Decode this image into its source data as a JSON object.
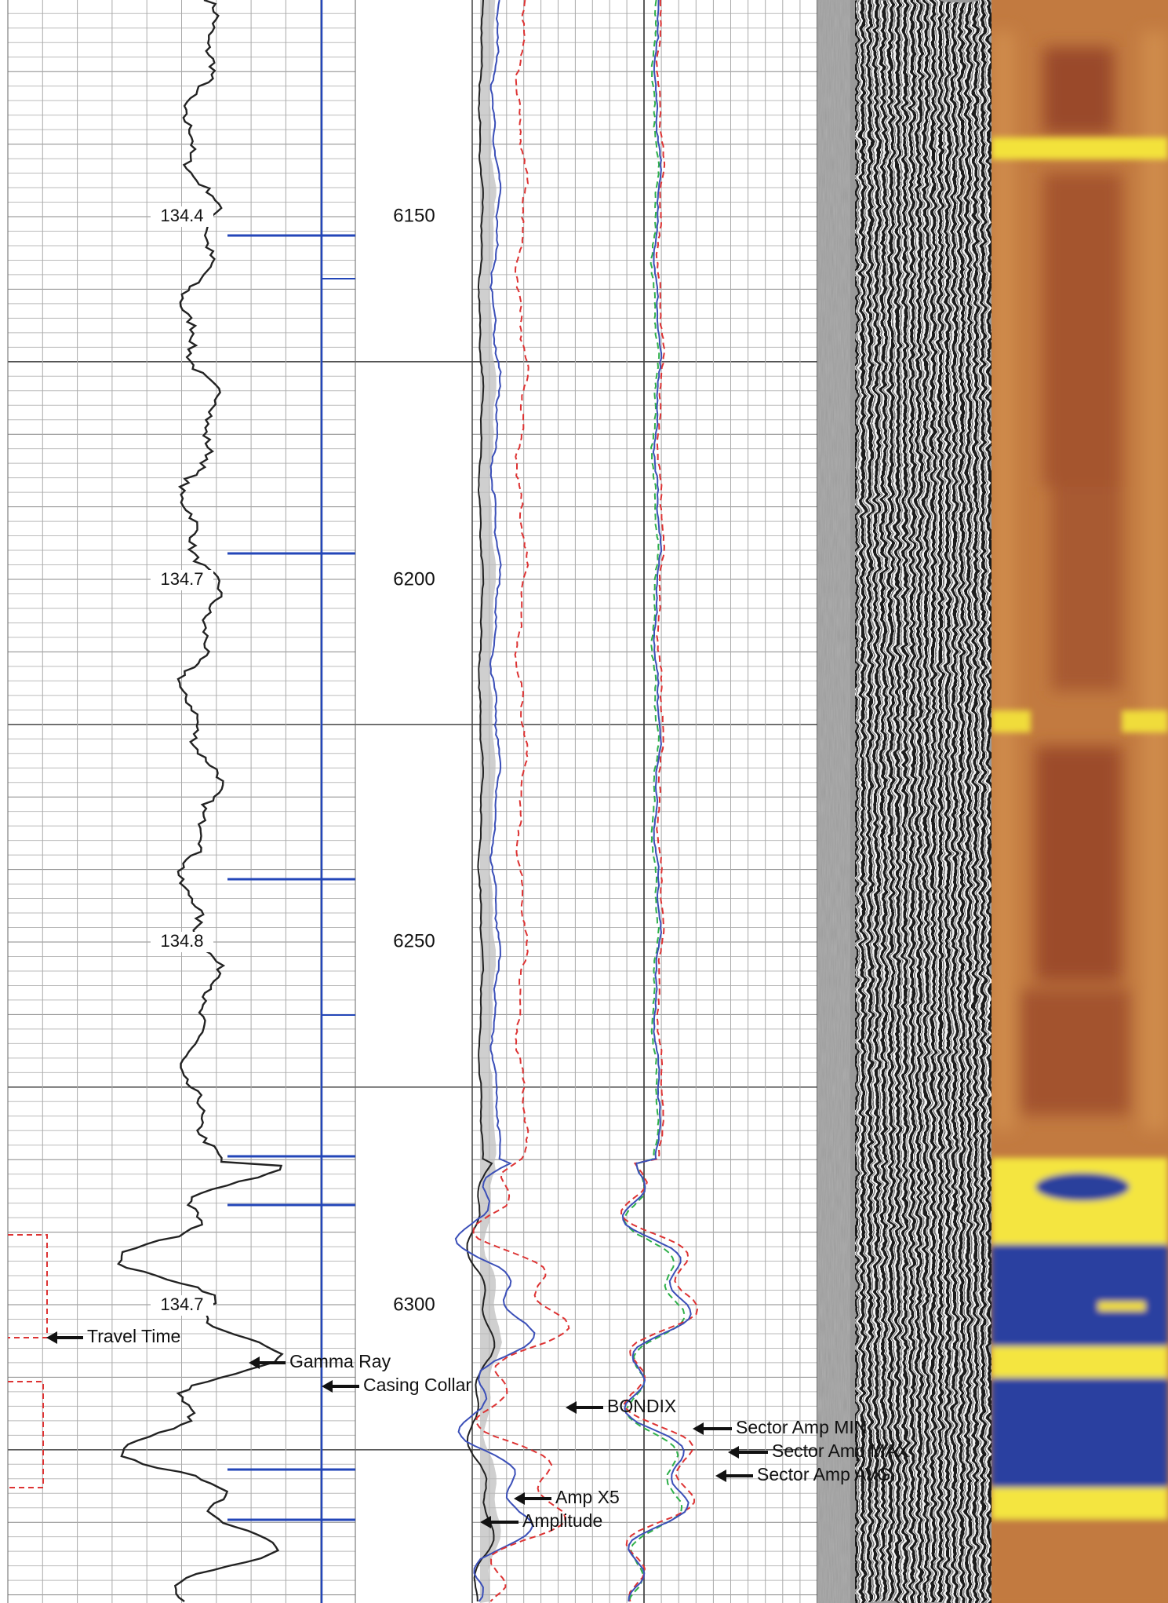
{
  "depth_track": {
    "labels": [
      "6150",
      "6200",
      "6250",
      "6300"
    ]
  },
  "travel_time_track": {
    "labels": [
      "134.4",
      "134.7",
      "134.8",
      "134.7"
    ]
  },
  "curve_labels": [
    "Travel Time",
    "Gamma Ray",
    "Casing Collar",
    "BONDIX",
    "Amp X5",
    "Amplitude",
    "Sector Amp MIN",
    "Sector Amp MAX",
    "Sector Amp AVG"
  ]
}
